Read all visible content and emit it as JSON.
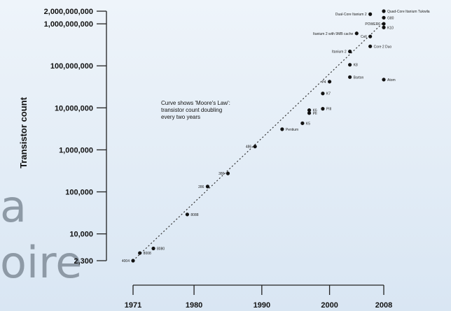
{
  "background_text": [
    "a",
    "oire"
  ],
  "chart_data": {
    "type": "scatter",
    "xlabel": "",
    "ylabel": "Transistor count",
    "y_scale": "log",
    "xlim": [
      1970,
      2010
    ],
    "ylim": [
      2300,
      2000000000
    ],
    "x_ticks": [
      {
        "value": 1971,
        "label": "1971"
      },
      {
        "value": 1980,
        "label": "1980"
      },
      {
        "value": 1990,
        "label": "1990"
      },
      {
        "value": 2000,
        "label": "2000"
      },
      {
        "value": 2008,
        "label": "2008"
      }
    ],
    "y_ticks": [
      {
        "value": 2000000000,
        "label": "2,000,000,000"
      },
      {
        "value": 1000000000,
        "label": "1,000,000,000"
      },
      {
        "value": 100000000,
        "label": "100,000,000"
      },
      {
        "value": 10000000,
        "label": "10,000,000"
      },
      {
        "value": 1000000,
        "label": "1,000,000"
      },
      {
        "value": 100000,
        "label": "100,000"
      },
      {
        "value": 10000,
        "label": "10,000"
      },
      {
        "value": 2300,
        "label": "2,300"
      }
    ],
    "annotation": [
      "Curve shows 'Moore's Law':",
      "transistor count doubling",
      "every two years"
    ],
    "trend": {
      "start": [
        1971,
        2300
      ],
      "end": [
        2008,
        1100000000
      ]
    },
    "points": [
      {
        "x": 1971,
        "y": 2300,
        "label": "4004"
      },
      {
        "x": 1972,
        "y": 3500,
        "label": "8008"
      },
      {
        "x": 1974,
        "y": 4500,
        "label": "8080"
      },
      {
        "x": 1979,
        "y": 29000,
        "label": "8088"
      },
      {
        "x": 1982,
        "y": 134000,
        "label": "286"
      },
      {
        "x": 1985,
        "y": 275000,
        "label": "386"
      },
      {
        "x": 1989,
        "y": 1200000,
        "label": "486"
      },
      {
        "x": 1993,
        "y": 3100000,
        "label": "Pentium"
      },
      {
        "x": 1996,
        "y": 4300000,
        "label": "K5"
      },
      {
        "x": 1997,
        "y": 7500000,
        "label": "PII"
      },
      {
        "x": 1997,
        "y": 8800000,
        "label": "K6"
      },
      {
        "x": 1999,
        "y": 9500000,
        "label": "PIII"
      },
      {
        "x": 1999,
        "y": 22000000,
        "label": "K7"
      },
      {
        "x": 2000,
        "y": 42000000,
        "label": "P4"
      },
      {
        "x": 2003,
        "y": 105900000,
        "label": "K8"
      },
      {
        "x": 2003,
        "y": 54000000,
        "label": "Barton"
      },
      {
        "x": 2003,
        "y": 220000000,
        "label": "Itanium 2"
      },
      {
        "x": 2004,
        "y": 592000000,
        "label": "Itanium 2 with 9MB cache"
      },
      {
        "x": 2006,
        "y": 291000000,
        "label": "Core 2 Duo"
      },
      {
        "x": 2006,
        "y": 1700000000,
        "label": "Dual-Core Itanium 2"
      },
      {
        "x": 2006,
        "y": 500000000,
        "label": "Cell"
      },
      {
        "x": 2008,
        "y": 47000000,
        "label": "Atom"
      },
      {
        "x": 2008,
        "y": 2000000000,
        "label": "Quad-Core Itanium Tukwila"
      },
      {
        "x": 2008,
        "y": 1400000000,
        "label": "G80"
      },
      {
        "x": 2008,
        "y": 820000000,
        "label": "K10"
      },
      {
        "x": 2008,
        "y": 1000000000,
        "label": "POWER6"
      }
    ]
  }
}
